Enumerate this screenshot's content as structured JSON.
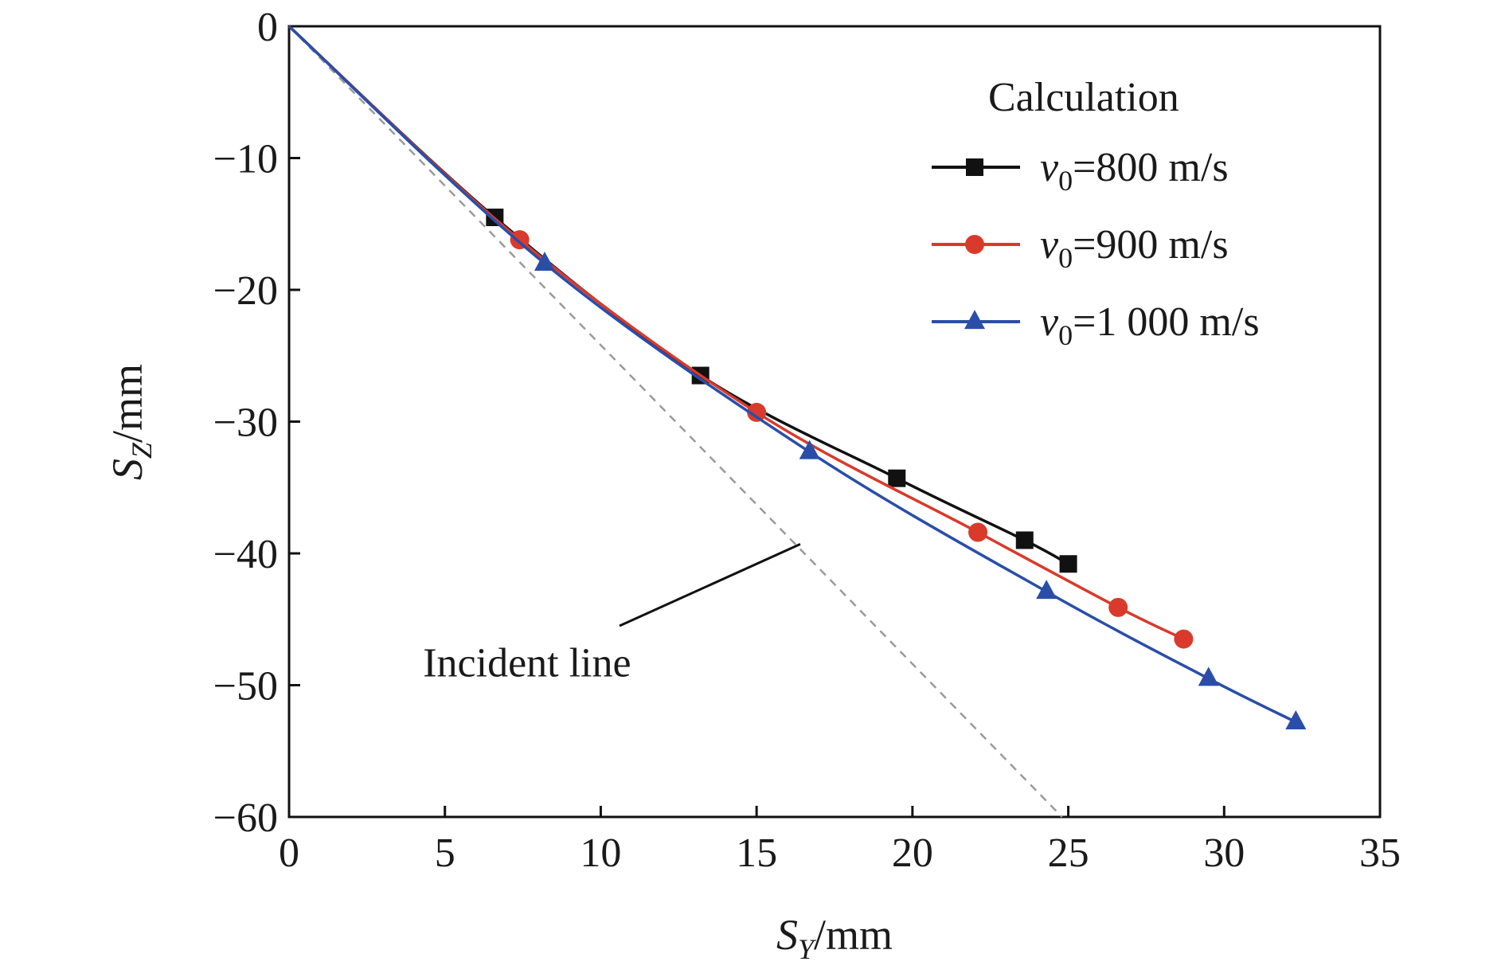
{
  "chart_data": {
    "type": "line",
    "xlabel": {
      "base": "S",
      "sub": "Y",
      "unit": "/mm"
    },
    "ylabel": {
      "base": "S",
      "sub": "Z",
      "unit": "/mm"
    },
    "xlim": [
      0,
      35
    ],
    "ylim": [
      -60,
      0
    ],
    "xticks": [
      0,
      5,
      10,
      15,
      20,
      25,
      30,
      35
    ],
    "yticks": [
      0,
      -10,
      -20,
      -30,
      -40,
      -50,
      -60
    ],
    "xtick_labels": [
      "0",
      "5",
      "10",
      "15",
      "20",
      "25",
      "30",
      "35"
    ],
    "ytick_labels": [
      "0",
      "−10",
      "−20",
      "−30",
      "−40",
      "−50",
      "−60"
    ],
    "grid": false,
    "legend": {
      "title": "Calculation",
      "position": "top-right"
    },
    "series": [
      {
        "name": "v0=800 m/s",
        "label_base": "v",
        "label_sub": "0",
        "label_rest": "=800 m/s",
        "color": "#111111",
        "marker": "square",
        "x": [
          0,
          6.6,
          13.2,
          19.5,
          23.6,
          25.0
        ],
        "y": [
          0,
          -14.5,
          -26.5,
          -34.3,
          -39.0,
          -40.8
        ]
      },
      {
        "name": "v0=900 m/s",
        "label_base": "v",
        "label_sub": "0",
        "label_rest": "=900 m/s",
        "color": "#d93a2b",
        "marker": "circle",
        "x": [
          0,
          7.4,
          15.0,
          22.1,
          26.6,
          28.7
        ],
        "y": [
          0,
          -16.2,
          -29.3,
          -38.4,
          -44.1,
          -46.5
        ]
      },
      {
        "name": "v0=1 000 m/s",
        "label_base": "v",
        "label_sub": "0",
        "label_rest": "=1 000 m/s",
        "color": "#2a4ea8",
        "marker": "triangle",
        "x": [
          0,
          8.2,
          16.7,
          24.3,
          29.5,
          32.3
        ],
        "y": [
          0,
          -18.0,
          -32.3,
          -42.9,
          -49.5,
          -52.8
        ]
      }
    ],
    "reference_line": {
      "name": "Incident line",
      "color": "#9a9a9a",
      "style": "dashed",
      "x": [
        0,
        24.8
      ],
      "y": [
        0,
        -60
      ]
    },
    "annotation": {
      "text": "Incident line",
      "data_x": 7.9,
      "data_y": -48.5,
      "arrow_to_x": 16.4,
      "arrow_to_y": -39.3
    }
  }
}
